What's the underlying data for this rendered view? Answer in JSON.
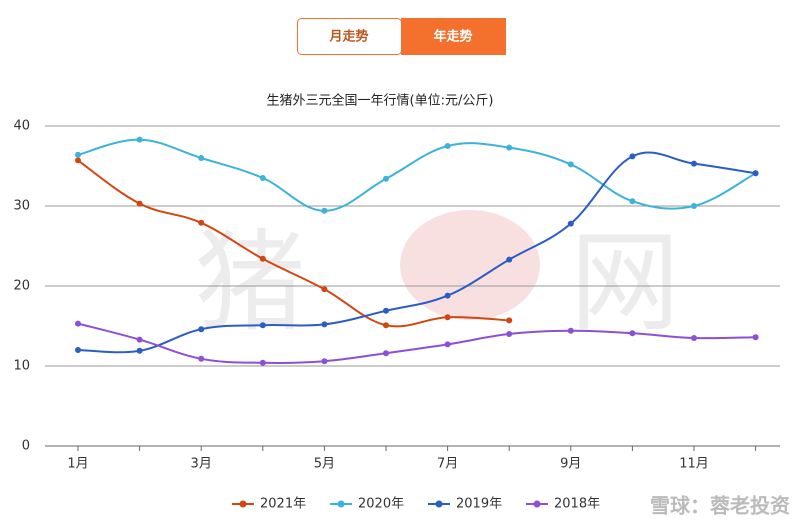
{
  "tabs": [
    "月走势",
    "年走势"
  ],
  "active_tab": 1,
  "chart_data": {
    "type": "line",
    "title": "生猪外三元全国一年行情(单位:元/公斤)",
    "categories": [
      "1月",
      null,
      "3月",
      null,
      "5月",
      null,
      "7月",
      null,
      "9月",
      null,
      "11月",
      null
    ],
    "ylim": [
      0,
      40
    ],
    "yticks": [
      0,
      10,
      20,
      30,
      40
    ],
    "grid": true,
    "legend": "bottom",
    "series": [
      {
        "name": "2021年",
        "color": "#d4460f",
        "values": [
          35.7,
          30.3,
          27.9,
          23.4,
          19.6,
          15.1,
          16.1,
          15.7,
          null,
          null,
          null,
          null
        ]
      },
      {
        "name": "2020年",
        "color": "#3db3dc",
        "values": [
          36.4,
          38.3,
          36.0,
          33.5,
          29.4,
          33.4,
          37.5,
          37.3,
          35.2,
          30.6,
          30.0,
          34.1
        ]
      },
      {
        "name": "2019年",
        "color": "#2a5dc6",
        "values": [
          12.0,
          11.9,
          14.6,
          15.1,
          15.2,
          16.9,
          18.8,
          23.3,
          27.8,
          36.2,
          35.3,
          34.1
        ]
      },
      {
        "name": "2018年",
        "color": "#8c4fd6",
        "values": [
          15.3,
          13.3,
          10.9,
          10.4,
          10.6,
          11.6,
          12.7,
          14.0,
          14.4,
          14.1,
          13.5,
          13.6
        ]
      }
    ]
  },
  "logo_watermark": [
    "猪",
    "网"
  ],
  "watermark": "雪球：蓉老投资"
}
